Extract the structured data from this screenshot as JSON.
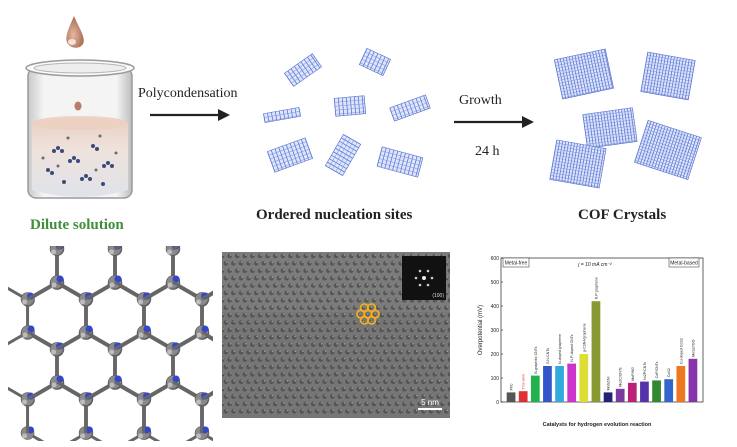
{
  "labels": {
    "dilute": "Dilute solution",
    "nucleation": "Ordered nucleation sites",
    "crystals": "COF Crystals"
  },
  "steps": {
    "polycondensation": "Polycondensation",
    "growth": "Growth",
    "time": "24 h"
  },
  "colors": {
    "dilute_label": "#3f8f3a",
    "arrow": "#222222",
    "crystal": "#5a78d6",
    "orange_highlight": "#f0b020"
  },
  "tem": {
    "scale_bar": "5 nm",
    "inset_label": "(100)"
  },
  "chart_data": {
    "type": "bar",
    "legend": [
      "Metal-free",
      "Metal-based"
    ],
    "annotation": "j = 10 mA cm⁻²",
    "ylabel": "Overpotential (mV)",
    "xlabel": "Catalysts for hydrogen evolution reaction",
    "ylim": [
      0,
      600
    ],
    "yticks": [
      "0",
      "100",
      "200",
      "300",
      "400",
      "500",
      "600"
    ],
    "categories": [
      "Pt/C",
      "This work",
      "B-graphitic CNTs",
      "S,N-CNTs",
      "N-doped graphene",
      "N,P-doped CNTs",
      "g-C3N4/graphene",
      "N,P graphene",
      "MoS2/Ni",
      "Mo2C/CNTs",
      "MoP/NG",
      "Ni2P/CNTs",
      "CoP/CNTs",
      "CoS2",
      "Cu-doped CoS2",
      "MoS2/rGO"
    ],
    "values": [
      40,
      45,
      110,
      150,
      150,
      160,
      200,
      420,
      40,
      55,
      80,
      85,
      90,
      95,
      150,
      180
    ],
    "bar_colors": [
      "#555555",
      "#e03030",
      "#22b14c",
      "#3355cc",
      "#33aadd",
      "#cc33cc",
      "#dddd33",
      "#889933",
      "#222277",
      "#7a3aa0",
      "#bb2277",
      "#5533aa",
      "#338833",
      "#3366cc",
      "#ee7722",
      "#8833aa"
    ],
    "data_labels": [
      "Pt/C",
      "This work",
      "B-graphitic CNTs",
      "S,N-CNTs",
      "N-doped graphene",
      "N,P-doped CNTs",
      "g-C3N4/graphene",
      "N,P graphene",
      "MoS2/Ni",
      "Mo2C/CNTs",
      "MoP/NG",
      "Ni2P/CNTs",
      "CoP/CNTs",
      "CoS2",
      "Cu-doped CoS2",
      "MoS2/rGO"
    ]
  }
}
